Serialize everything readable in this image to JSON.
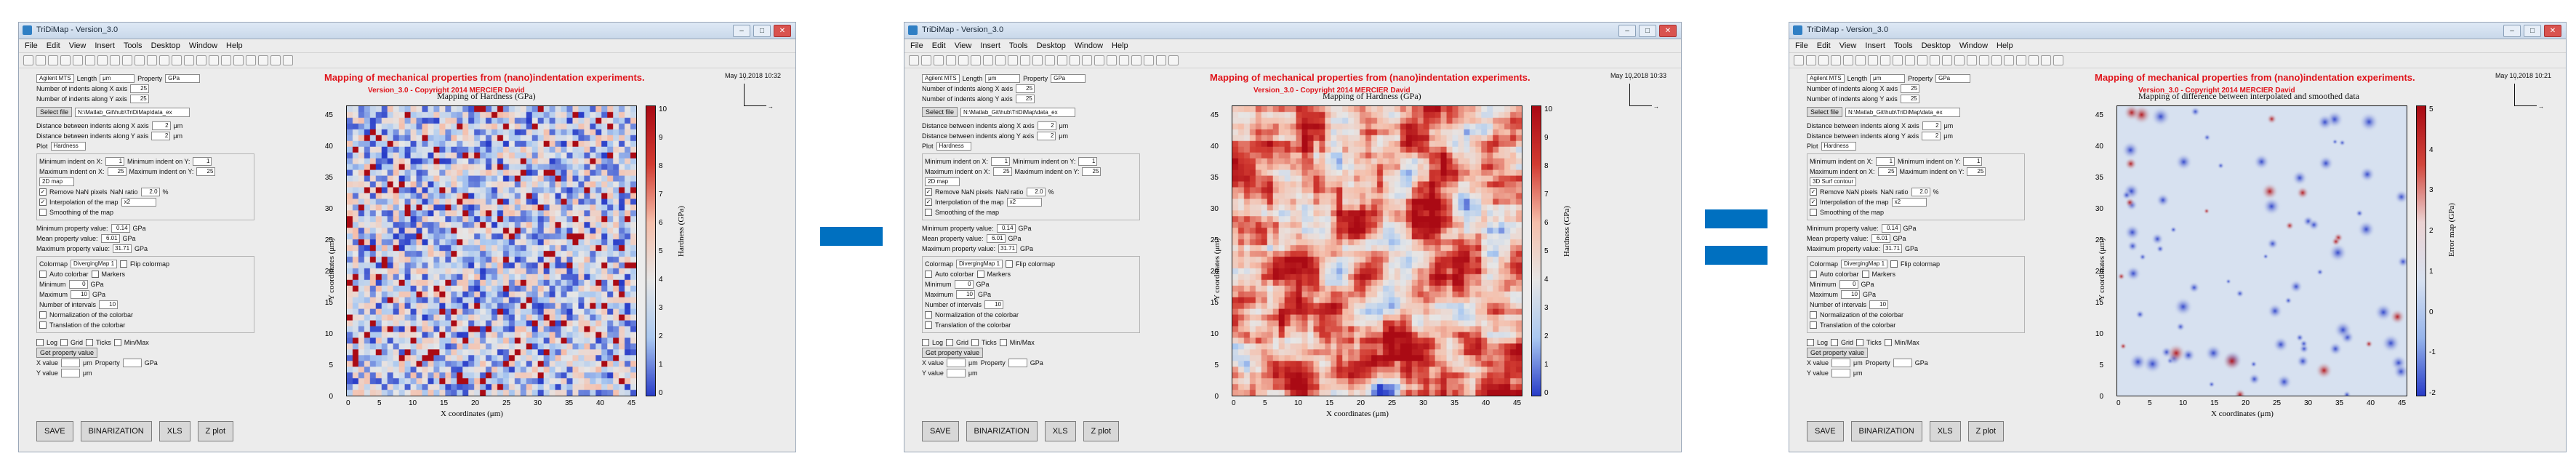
{
  "windows": [
    {
      "title": "TriDiMap - Version_3.0",
      "menu": [
        "File",
        "Edit",
        "View",
        "Insert",
        "Tools",
        "Desktop",
        "Window",
        "Help"
      ],
      "banner1": "Mapping of mechanical properties from (nano)indentation experiments.",
      "banner2": "Version_3.0 - Copyright 2014 MERCIER David",
      "date": "May 10,2018 10:32",
      "plot_title": "Mapping of Hardness (GPa)",
      "cbar_label": "Hardness (GPa)",
      "cbar_ticks": [
        "10",
        "9",
        "8",
        "7",
        "6",
        "5",
        "4",
        "3",
        "2",
        "1",
        "0"
      ],
      "xlabel": "X coordinates (μm)",
      "ylabel": "Y coordinates (μm)",
      "xticks": [
        "0",
        "5",
        "10",
        "15",
        "20",
        "25",
        "30",
        "35",
        "40",
        "45"
      ],
      "yticks": [
        "45",
        "40",
        "35",
        "30",
        "25",
        "20",
        "15",
        "10",
        "5",
        "0"
      ],
      "plot_select": "2D map",
      "smoothing": false,
      "palette": "heat"
    },
    {
      "title": "TriDiMap - Version_3.0",
      "menu": [
        "File",
        "Edit",
        "View",
        "Insert",
        "Tools",
        "Desktop",
        "Window",
        "Help"
      ],
      "banner1": "Mapping of mechanical properties from (nano)indentation experiments.",
      "banner2": "Version_3.0 - Copyright 2014 MERCIER David",
      "date": "May 10,2018 10:33",
      "plot_title": "Mapping of Hardness (GPa)",
      "cbar_label": "Hardness (GPa)",
      "cbar_ticks": [
        "10",
        "9",
        "8",
        "7",
        "6",
        "5",
        "4",
        "3",
        "2",
        "1",
        "0"
      ],
      "xlabel": "X coordinates (μm)",
      "ylabel": "Y coordinates (μm)",
      "xticks": [
        "0",
        "5",
        "10",
        "15",
        "20",
        "25",
        "30",
        "35",
        "40",
        "45"
      ],
      "yticks": [
        "45",
        "40",
        "35",
        "30",
        "25",
        "20",
        "15",
        "10",
        "5",
        "0"
      ],
      "plot_select": "2D map",
      "smoothing": true,
      "palette": "heat"
    },
    {
      "title": "TriDiMap - Version_3.0",
      "menu": [
        "File",
        "Edit",
        "View",
        "Insert",
        "Tools",
        "Desktop",
        "Window",
        "Help"
      ],
      "banner1": "Mapping of mechanical properties from (nano)indentation experiments.",
      "banner2": "Version_3.0 - Copyright 2014 MERCIER David",
      "date": "May 10,2018 10:21",
      "plot_title": "Mapping of difference between interpolated and smoothed data",
      "cbar_label": "Error map (GPa)",
      "cbar_ticks": [
        "5",
        "4",
        "3",
        "2",
        "1",
        "0",
        "-1",
        "-2"
      ],
      "xlabel": "X coordinates (μm)",
      "ylabel": "Y coordinates (μm)",
      "xticks": [
        "0",
        "5",
        "10",
        "15",
        "20",
        "25",
        "30",
        "35",
        "40",
        "45"
      ],
      "yticks": [
        "45",
        "40",
        "35",
        "30",
        "25",
        "20",
        "15",
        "10",
        "5",
        "0"
      ],
      "plot_select": "3D Surf contour",
      "smoothing": true,
      "palette": "diverging"
    }
  ],
  "panel": {
    "indenter": "Agilent MTS",
    "length_label": "Length",
    "length_unit": "μm",
    "property_label": "Property",
    "property_unit": "GPa",
    "n_x_label": "Number of indents along X axis",
    "n_x": "25",
    "n_y_label": "Number of indents along Y axis",
    "n_y": "25",
    "select_file": "Select file",
    "file_path": "N:\\Matlab_Git\\hub\\TriDiMap\\data_ex",
    "dist_x_label": "Distance between indents along X axis",
    "dist_x": "2",
    "dist_y_label": "Distance between indents along Y axis",
    "dist_y": "2",
    "dist_unit": "μm",
    "plot_label": "Plot",
    "plot_prop": "Hardness",
    "min_x_label": "Minimum indent on X:",
    "min_x": "1",
    "max_x_label": "Maximum indent on X:",
    "max_x": "25",
    "min_y_label": "Minimum indent on Y:",
    "min_y": "1",
    "max_y_label": "Maximum indent on Y:",
    "max_y": "25",
    "remove_nan": "Remove NaN pixels",
    "interp": "Interpolation of the map",
    "smooth": "Smoothing of the map",
    "nan_ratio_label": "NaN ratio",
    "nan_ratio": "2.0",
    "pct": "%",
    "interp_sel": "x2",
    "min_val_label": "Minimum property value:",
    "min_val": "0.14",
    "mean_val_label": "Mean property value:",
    "mean_val": "6.01",
    "max_val_label": "Maximum property value:",
    "max_val": "31.71",
    "colormap_label": "Colormap",
    "colormap": "DivergingMap 1",
    "flip": "Flip colormap",
    "autoscale": "Auto colorbar",
    "markers": "Markers",
    "min_label": "Minimum",
    "min": "0",
    "max_label": "Maximum",
    "max": "10",
    "intervals_label": "Number of intervals",
    "intervals": "10",
    "normalize": "Normalization of the colorbar",
    "translate": "Translation of the colorbar",
    "log": "Log",
    "grid": "Grid",
    "ticks": "Ticks",
    "minmax": "Min/Max",
    "get_prop": "Get property value",
    "x_value": "X value",
    "y_value": "Y value",
    "property": "Property",
    "unit": "GPa"
  },
  "buttons": {
    "save": "SAVE",
    "binarization": "BINARIZATION",
    "xls": "XLS",
    "zplot": "Z plot"
  }
}
